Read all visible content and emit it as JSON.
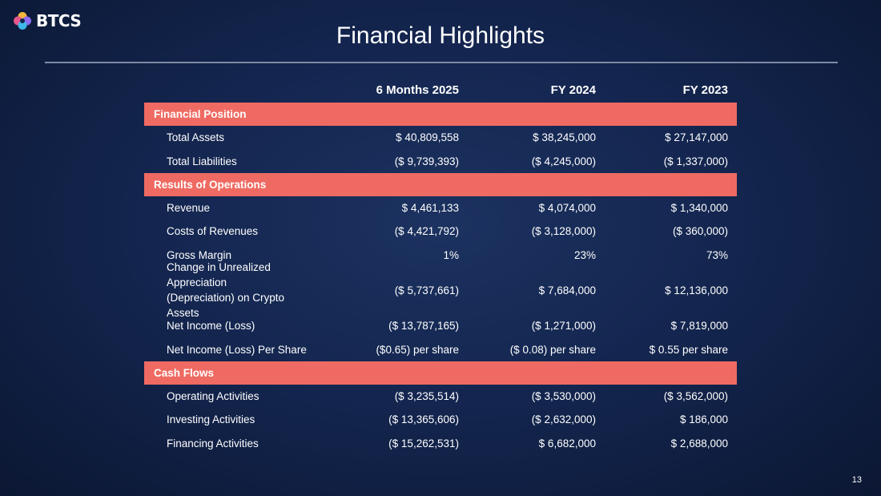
{
  "logo": {
    "text": "BTCS"
  },
  "title": "Financial Highlights",
  "columns": [
    "",
    "6 Months 2025",
    "FY 2024",
    "FY 2023"
  ],
  "sections": [
    {
      "label": "Financial Position",
      "rows": [
        [
          "Total Assets",
          "$ 40,809,558",
          "$ 38,245,000",
          "$ 27,147,000"
        ],
        [
          "Total Liabilities",
          "($ 9,739,393)",
          "($ 4,245,000)",
          "($ 1,337,000)"
        ]
      ]
    },
    {
      "label": "Results of Operations",
      "rows": [
        [
          "Revenue",
          "$ 4,461,133",
          "$ 4,074,000",
          "$ 1,340,000"
        ],
        [
          "Costs of Revenues",
          "($ 4,421,792)",
          "($ 3,128,000)",
          "($ 360,000)"
        ],
        [
          "Gross Margin",
          "1%",
          "23%",
          "73%"
        ],
        [
          "Change in Unrealized Appreciation (Depreciation) on Crypto Assets",
          "($ 5,737,661)",
          "$ 7,684,000",
          "$ 12,136,000"
        ],
        [
          "Net Income (Loss)",
          "($ 13,787,165)",
          "($ 1,271,000)",
          "$ 7,819,000"
        ],
        [
          "Net Income (Loss) Per Share",
          "($0.65) per share",
          "($ 0.08) per share",
          "$ 0.55 per share"
        ]
      ]
    },
    {
      "label": "Cash Flows",
      "rows": [
        [
          "Operating Activities",
          "($ 3,235,514)",
          "($ 3,530,000)",
          "($ 3,562,000)"
        ],
        [
          "Investing Activities",
          "($ 13,365,606)",
          "($ 2,632,000)",
          "$ 186,000"
        ],
        [
          "Financing Activities",
          "($ 15,262,531)",
          "$ 6,682,000",
          "$ 2,688,000"
        ]
      ]
    }
  ],
  "page_number": "13",
  "colors": {
    "section_bar": "#ef6a62",
    "background": "#142650",
    "rule": "#7d8aa3"
  }
}
